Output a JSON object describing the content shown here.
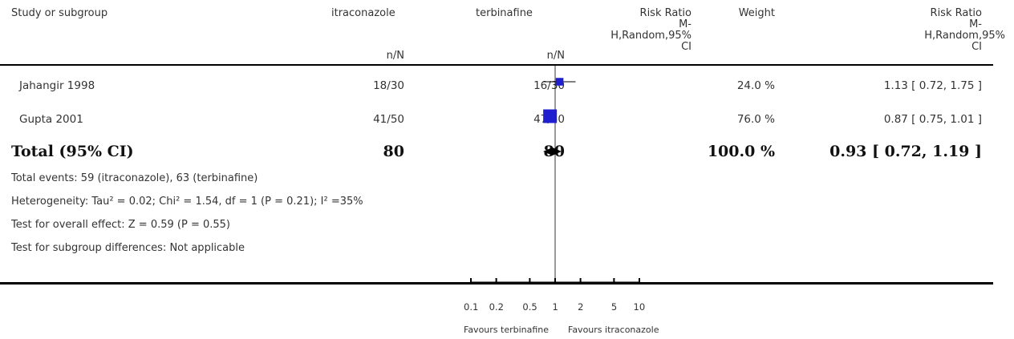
{
  "header": {
    "study": "Study or subgroup",
    "group1": "itraconazole",
    "group2": "terbinafine",
    "rr_label_1": "Risk Ratio",
    "rr_label_2": "M-",
    "rr_label_3": "H,Random,95%",
    "rr_label_4": "CI",
    "weight": "Weight",
    "rr2_label_1": "Risk Ratio",
    "rr2_label_2": "M-",
    "rr2_label_3": "H,Random,95%",
    "rr2_label_4": "CI",
    "n_n_1": "n/N",
    "n_n_2": "n/N"
  },
  "chart_data": {
    "type": "forest",
    "scale": "log",
    "xlim": [
      0.1,
      10
    ],
    "x_ticks": [
      "0.1",
      "0.2",
      "0.5",
      "1",
      "2",
      "5",
      "10"
    ],
    "x_tick_values": [
      0.1,
      0.2,
      0.5,
      1,
      2,
      5,
      10
    ],
    "favours_left": "Favours terbinafine",
    "favours_right": "Favours itraconazole",
    "studies": [
      {
        "name": "Jahangir 1998",
        "g1": "18/30",
        "g2": "16/30",
        "weight": "24.0 %",
        "ci_text": "1.13 [ 0.72, 1.75 ]",
        "rr": 1.13,
        "lo": 0.72,
        "hi": 1.75,
        "w": 24.0
      },
      {
        "name": "Gupta 2001",
        "g1": "41/50",
        "g2": "47/50",
        "weight": "76.0 %",
        "ci_text": "0.87 [ 0.75, 1.01 ]",
        "rr": 0.87,
        "lo": 0.75,
        "hi": 1.01,
        "w": 76.0
      }
    ],
    "total": {
      "name": "Total (95% CI)",
      "g1": "80",
      "g2": "80",
      "weight": "100.0 %",
      "ci_text": "0.93 [ 0.72, 1.19 ]",
      "rr": 0.93,
      "lo": 0.72,
      "hi": 1.19
    },
    "colors": {
      "square": "#1f1fd0",
      "line": "#000000"
    }
  },
  "notes": {
    "events": "Total events: 59 (itraconazole), 63 (terbinafine)",
    "heterogeneity": "Heterogeneity: Tau² = 0.02; Chi² = 1.54, df = 1 (P = 0.21); I² =35%",
    "overall": "Test for overall effect: Z = 0.59 (P = 0.55)",
    "subgroup": "Test for subgroup differences: Not applicable"
  }
}
